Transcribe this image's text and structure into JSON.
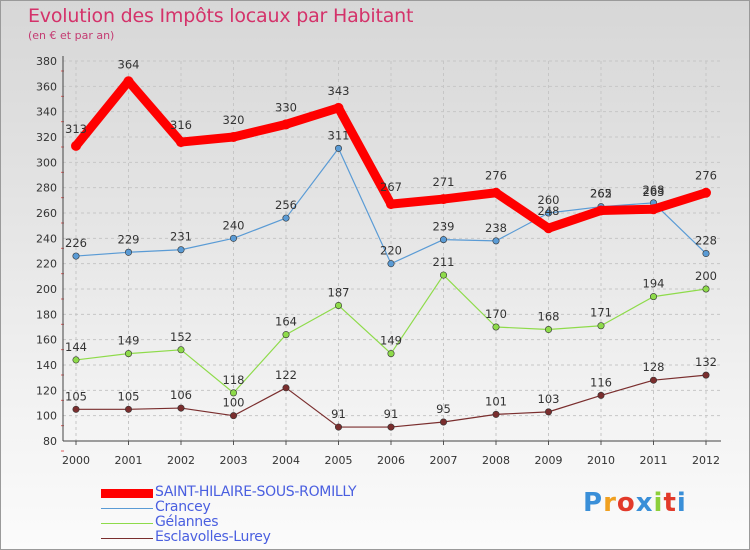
{
  "chart_data": {
    "type": "line",
    "title": "Evolution des Impôts locaux par Habitant",
    "subtitle": "(en € et par an)",
    "x": [
      "2000",
      "2001",
      "2002",
      "2003",
      "2004",
      "2005",
      "2006",
      "2007",
      "2008",
      "2009",
      "2010",
      "2011",
      "2012"
    ],
    "ylim": [
      80,
      380
    ],
    "yticks": [
      80,
      100,
      120,
      140,
      160,
      180,
      200,
      220,
      240,
      260,
      280,
      300,
      320,
      340,
      360,
      380
    ],
    "grid": true,
    "legend_position": "bottom-left",
    "series": [
      {
        "name": "SAINT-HILAIRE-SOUS-ROMILLY",
        "color": "#ff0000",
        "values": [
          313,
          364,
          316,
          320,
          330,
          343,
          267,
          271,
          276,
          248,
          262,
          263,
          276
        ]
      },
      {
        "name": "Crancey",
        "color": "#5a9bd5",
        "values": [
          226,
          229,
          231,
          240,
          256,
          311,
          220,
          239,
          238,
          260,
          265,
          268,
          228
        ]
      },
      {
        "name": "Gélannes",
        "color": "#8edb4a",
        "values": [
          144,
          149,
          152,
          118,
          164,
          187,
          149,
          211,
          170,
          168,
          171,
          194,
          200
        ]
      },
      {
        "name": "Esclavolles-Lurey",
        "color": "#7a2e2e",
        "values": [
          105,
          105,
          106,
          100,
          122,
          91,
          91,
          95,
          101,
          103,
          116,
          128,
          132
        ]
      }
    ]
  },
  "logo": {
    "text": "Proxiti",
    "colors": [
      "#3a8fd8",
      "#f0a020",
      "#e23a2a",
      "#3a8fd8",
      "#8ccf3a",
      "#e23a2a",
      "#3a8fd8"
    ]
  }
}
